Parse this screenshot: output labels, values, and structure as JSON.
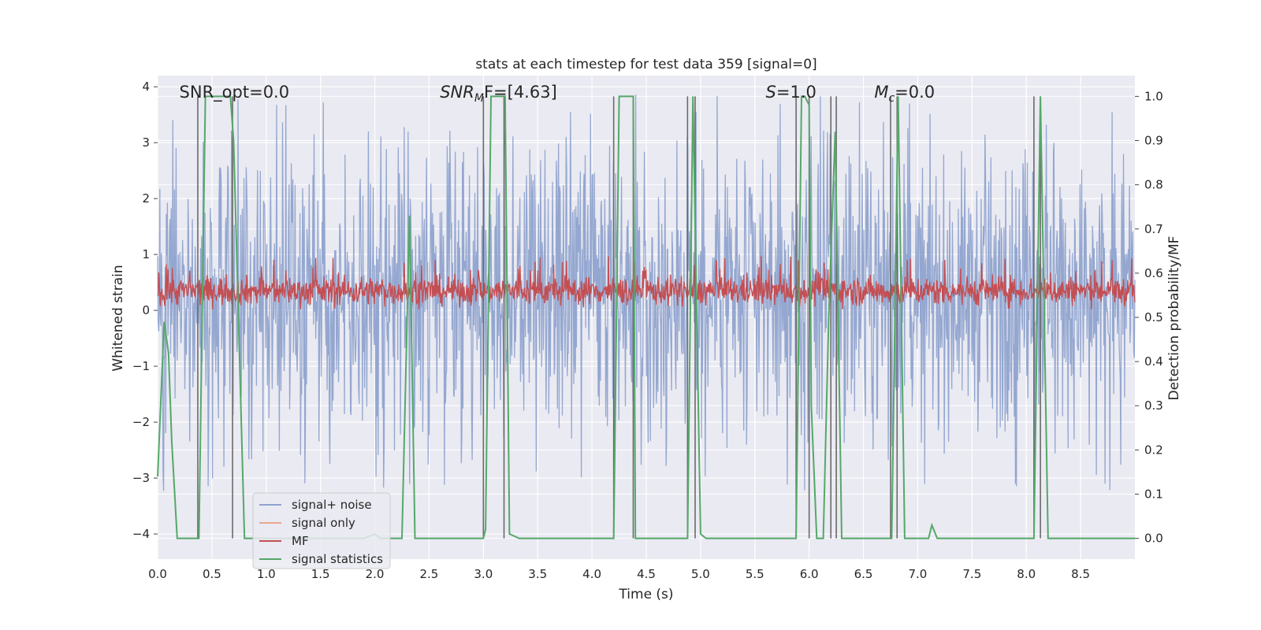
{
  "chart_data": {
    "type": "line",
    "title": "stats at each timestep for test data 359 [signal=0]",
    "xlabel": "Time (s)",
    "ylabel": "Whitened strain",
    "y2label": "Detection probability/MF",
    "xlim": [
      0,
      9.0
    ],
    "ylim": [
      -4.45,
      4.2
    ],
    "y2lim": [
      -0.047,
      1.047
    ],
    "x_ticks": [
      "0.0",
      "0.5",
      "1.0",
      "1.5",
      "2.0",
      "2.5",
      "3.0",
      "3.5",
      "4.0",
      "4.5",
      "5.0",
      "5.5",
      "6.0",
      "6.5",
      "7.0",
      "7.5",
      "8.0",
      "8.5"
    ],
    "y_ticks": [
      "-4",
      "-3",
      "-2",
      "-1",
      "0",
      "1",
      "2",
      "3",
      "4"
    ],
    "y2_ticks": [
      "0.0",
      "0.1",
      "0.2",
      "0.3",
      "0.4",
      "0.5",
      "0.6",
      "0.7",
      "0.8",
      "0.9",
      "1.0"
    ],
    "grid": true,
    "legend_position": "lower-left",
    "annotations": [
      {
        "prefix": "SNR_opt",
        "sub": "",
        "value": "=0.0",
        "x": 0.2
      },
      {
        "prefix": "SNR",
        "sub": "M",
        "suffix": "F",
        "value": "=[4.63]",
        "x": 2.6
      },
      {
        "prefix": "S",
        "sub": "",
        "value": "=1.0",
        "x": 5.6
      },
      {
        "prefix": "M",
        "sub": "c",
        "value": "=0.0",
        "x": 6.6
      }
    ],
    "colors": {
      "background": "#eaeaf2",
      "noise": "#8fa3cd",
      "signal_only": "#e9a78e",
      "mf": "#c44e52",
      "stats": "#55a868",
      "vlines": "#6a6a6a"
    },
    "series": [
      {
        "name": "signal+ noise",
        "kind": "dense-noise",
        "y_range": [
          -3.6,
          3.9
        ],
        "typical_band": [
          -1.7,
          2.3
        ],
        "sample_count": 1800
      },
      {
        "name": "signal only",
        "kind": "line",
        "values": []
      },
      {
        "name": "MF",
        "kind": "dense-noise",
        "y_range": [
          0.02,
          0.97
        ],
        "typical_band": [
          0.1,
          0.6
        ],
        "sample_count": 1800
      },
      {
        "name": "signal statistics",
        "kind": "line",
        "axis": "y2",
        "x": [
          0.0,
          0.06,
          0.1,
          0.13,
          0.18,
          0.3,
          0.38,
          0.44,
          0.67,
          0.7,
          0.8,
          0.9,
          1.0,
          1.2,
          1.5,
          1.9,
          1.95,
          2.0,
          2.05,
          2.25,
          2.32,
          2.37,
          2.6,
          3.0,
          3.02,
          3.07,
          3.2,
          3.24,
          3.33,
          3.5,
          4.0,
          4.2,
          4.25,
          4.38,
          4.4,
          4.6,
          4.88,
          4.93,
          5.0,
          5.05,
          5.5,
          5.88,
          5.93,
          5.96,
          6.0,
          6.02,
          6.07,
          6.13,
          6.18,
          6.24,
          6.3,
          6.5,
          6.76,
          6.82,
          6.88,
          7.0,
          7.1,
          7.13,
          7.18,
          7.5,
          8.0,
          8.07,
          8.13,
          8.2,
          8.5,
          9.0
        ],
        "values": [
          0.14,
          0.49,
          0.42,
          0.22,
          0.0,
          0.0,
          0.0,
          1.0,
          1.0,
          0.9,
          0.0,
          0.0,
          0.0,
          0.0,
          0.0,
          0.0,
          0.005,
          0.01,
          0.0,
          0.0,
          0.73,
          0.0,
          0.0,
          0.0,
          0.02,
          1.0,
          1.0,
          0.01,
          0.0,
          0.0,
          0.0,
          0.0,
          1.0,
          1.0,
          0.0,
          0.0,
          0.0,
          1.0,
          0.01,
          0.0,
          0.0,
          0.0,
          1.0,
          1.0,
          0.98,
          0.3,
          0.0,
          0.0,
          0.5,
          0.92,
          0.0,
          0.0,
          0.0,
          1.0,
          0.0,
          0.0,
          0.0,
          0.03,
          0.0,
          0.0,
          0.0,
          0.0,
          1.0,
          0.0,
          0.0,
          0.0
        ]
      }
    ],
    "vertical_lines_x": [
      0.37,
      0.69,
      3.0,
      3.19,
      4.2,
      4.38,
      4.88,
      4.95,
      5.88,
      6.0,
      6.2,
      6.25,
      6.75,
      6.81,
      8.07,
      8.13
    ]
  }
}
